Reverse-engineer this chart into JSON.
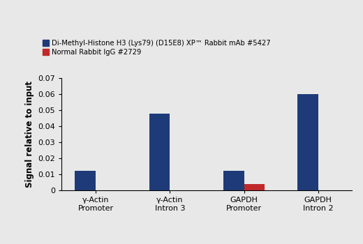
{
  "categories": [
    "γ-Actin\nPromoter",
    "γ-Actin\nIntron 3",
    "GAPDH\nPromoter",
    "GAPDH\nIntron 2"
  ],
  "blue_values": [
    0.012,
    0.048,
    0.012,
    0.06
  ],
  "red_values": [
    0.0,
    0.0,
    0.004,
    0.0
  ],
  "blue_color": "#1e3a78",
  "red_color": "#c0292a",
  "ylabel": "Signal relative to input",
  "ylim": [
    0,
    0.07
  ],
  "yticks": [
    0,
    0.01,
    0.02,
    0.03,
    0.04,
    0.05,
    0.06,
    0.07
  ],
  "legend_blue": "Di-Methyl-Histone H3 (Lys79) (D15E8) XP™ Rabbit mAb #5427",
  "legend_red": "Normal Rabbit IgG #2729",
  "bar_width": 0.28,
  "figsize": [
    5.2,
    3.5
  ],
  "dpi": 100,
  "bg_color": "#e8e8e8"
}
